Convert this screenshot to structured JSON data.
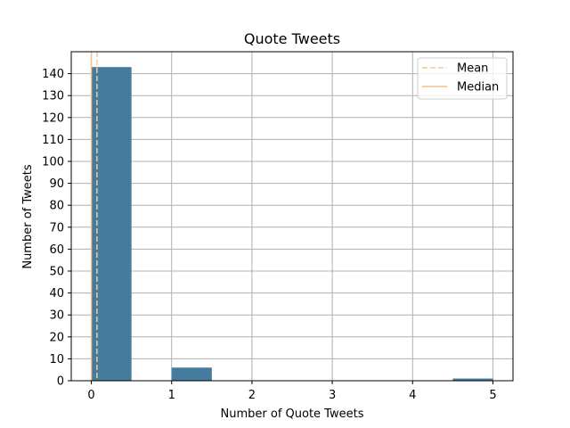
{
  "chart_data": {
    "type": "bar",
    "title": "Quote Tweets",
    "xlabel": "Number of Quote Tweets",
    "ylabel": "Number of Tweets",
    "xlim": [
      -0.25,
      5.25
    ],
    "ylim": [
      0,
      150
    ],
    "xticks": [
      0,
      1,
      2,
      3,
      4,
      5
    ],
    "yticks": [
      0,
      10,
      20,
      30,
      40,
      50,
      60,
      70,
      80,
      90,
      100,
      110,
      120,
      130,
      140
    ],
    "grid": true,
    "bins": [
      {
        "x0": 0.0,
        "x1": 0.5,
        "count": 143
      },
      {
        "x0": 0.5,
        "x1": 1.0,
        "count": 0
      },
      {
        "x0": 1.0,
        "x1": 1.5,
        "count": 6
      },
      {
        "x0": 1.5,
        "x1": 2.0,
        "count": 0
      },
      {
        "x0": 2.0,
        "x1": 2.5,
        "count": 0
      },
      {
        "x0": 2.5,
        "x1": 3.0,
        "count": 0
      },
      {
        "x0": 3.0,
        "x1": 3.5,
        "count": 0
      },
      {
        "x0": 3.5,
        "x1": 4.0,
        "count": 0
      },
      {
        "x0": 4.0,
        "x1": 4.5,
        "count": 0
      },
      {
        "x0": 4.5,
        "x1": 5.0,
        "count": 1
      }
    ],
    "mean": 0.07,
    "median": 0,
    "legend": {
      "placement": "top-right",
      "entries": [
        {
          "label": "Mean",
          "style": "dashed"
        },
        {
          "label": "Median",
          "style": "solid"
        }
      ]
    },
    "colors": {
      "bar": "#457b9d",
      "mean": "#f4c89c",
      "median": "#f0c090",
      "grid": "#b0b0b0"
    }
  }
}
